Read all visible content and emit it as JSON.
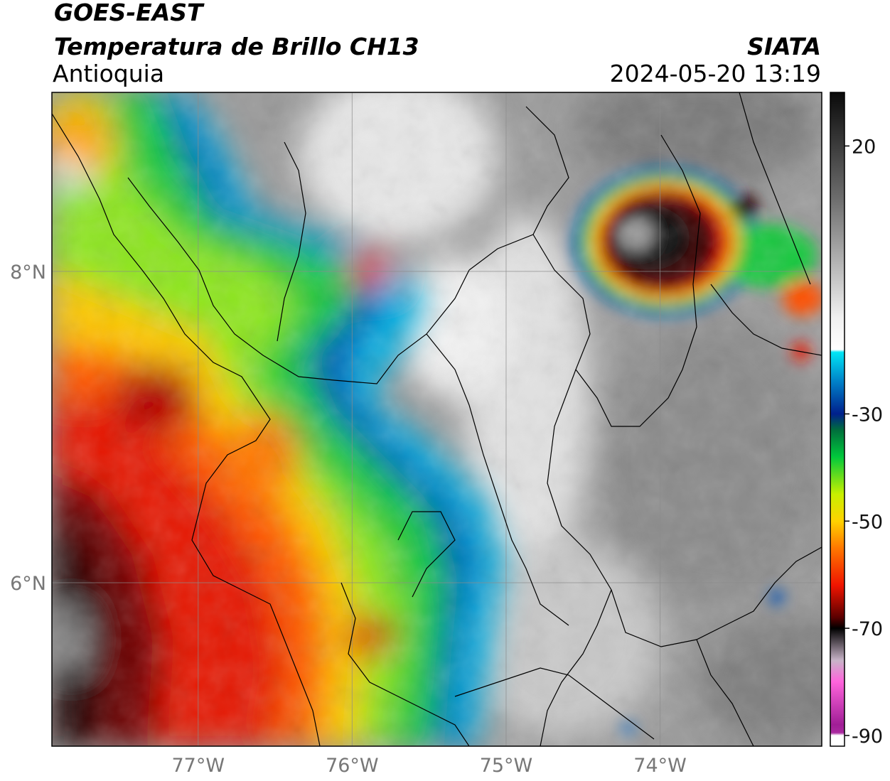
{
  "header": {
    "satellite": "GOES-EAST",
    "product": "Temperatura de Brillo CH13",
    "region": "Antioquia",
    "organization": "SIATA",
    "datetime": "2024-05-20 13:19"
  },
  "map": {
    "extent_lon": [
      -77.95,
      -72.95
    ],
    "extent_lat": [
      4.95,
      9.15
    ],
    "x_ticks": [
      {
        "lon": -77,
        "label": "77°W"
      },
      {
        "lon": -76,
        "label": "76°W"
      },
      {
        "lon": -75,
        "label": "75°W"
      },
      {
        "lon": -74,
        "label": "74°W"
      }
    ],
    "y_ticks": [
      {
        "lat": 8,
        "label": "8°N"
      },
      {
        "lat": 6,
        "label": "6°N"
      }
    ],
    "gridlines": true
  },
  "colorbar": {
    "range": [
      -92,
      30
    ],
    "ticks": [
      {
        "value": 20,
        "label": "20"
      },
      {
        "value": -30,
        "label": "-30"
      },
      {
        "value": -50,
        "label": "-50"
      },
      {
        "value": -70,
        "label": "-70"
      },
      {
        "value": -90,
        "label": "-90"
      }
    ],
    "stops": [
      {
        "value": 30,
        "color": "#0a0a0a"
      },
      {
        "value": 10,
        "color": "#6e6e6e"
      },
      {
        "value": -12,
        "color": "#f0f0f0"
      },
      {
        "value": -18,
        "color": "#ffffff"
      },
      {
        "value": -18.5,
        "color": "#00e5f5"
      },
      {
        "value": -24,
        "color": "#0080c8"
      },
      {
        "value": -30,
        "color": "#00208c"
      },
      {
        "value": -33,
        "color": "#006e3c"
      },
      {
        "value": -38,
        "color": "#00c83c"
      },
      {
        "value": -45,
        "color": "#c8f000"
      },
      {
        "value": -50,
        "color": "#ffd200"
      },
      {
        "value": -55,
        "color": "#ff7800"
      },
      {
        "value": -62,
        "color": "#f01400"
      },
      {
        "value": -68,
        "color": "#5a0000"
      },
      {
        "value": -70,
        "color": "#000000"
      },
      {
        "value": -76,
        "color": "#c8b4c8"
      },
      {
        "value": -80,
        "color": "#ff64dc"
      },
      {
        "value": -88,
        "color": "#a01e96"
      },
      {
        "value": -89.5,
        "color": "#aa2aa0"
      },
      {
        "value": -90,
        "color": "#ffffff"
      }
    ]
  }
}
